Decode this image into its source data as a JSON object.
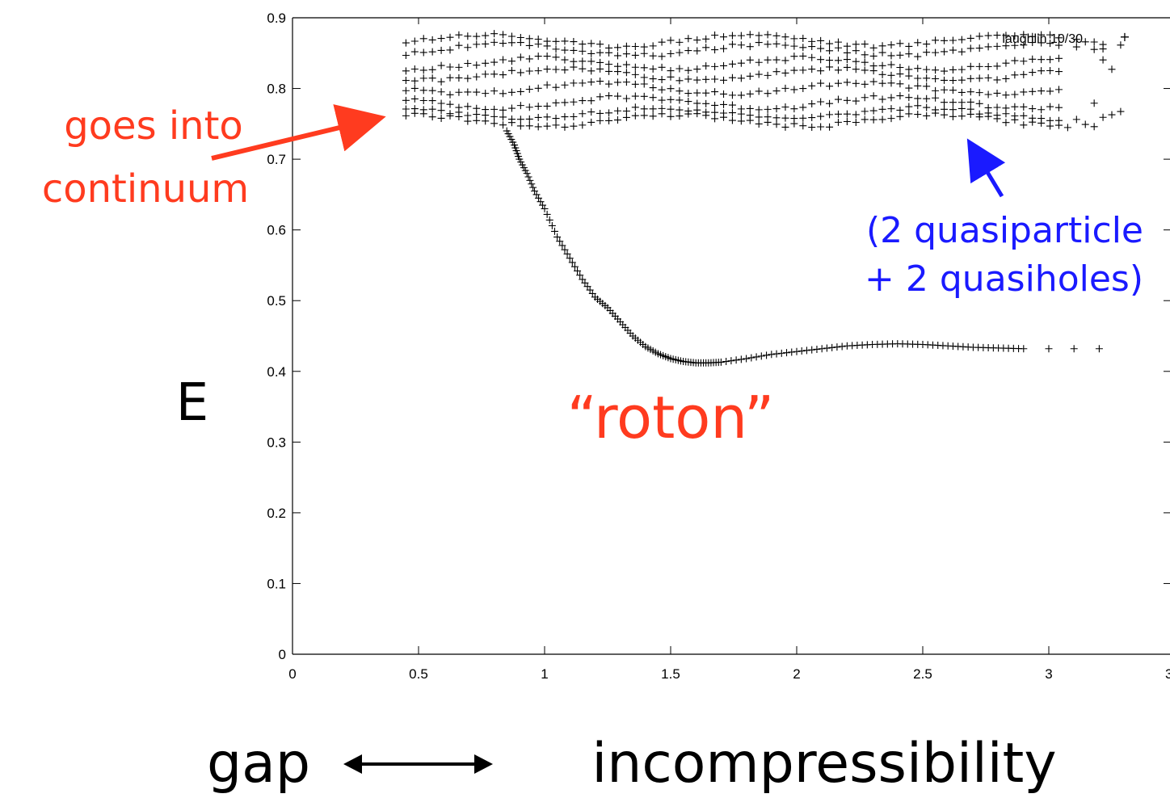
{
  "chart_data": {
    "type": "scatter",
    "xlim": [
      0,
      3.5
    ],
    "ylim": [
      0,
      0.9
    ],
    "x_ticks": [
      "0",
      "0.5",
      "1",
      "1.5",
      "2",
      "2.5",
      "3",
      "3"
    ],
    "y_ticks": [
      "0",
      "0.1",
      "0.2",
      "0.3",
      "0.4",
      "0.5",
      "0.6",
      "0.7",
      "0.8",
      "0.9"
    ],
    "ylabel": "E",
    "legend": {
      "label": "laughlin 10/30",
      "position": "top-right"
    },
    "grid": false,
    "series": [
      {
        "role": "roton branch",
        "x": [
          0.85,
          0.88,
          0.9,
          0.93,
          0.96,
          1.0,
          1.05,
          1.1,
          1.15,
          1.2,
          1.25,
          1.3,
          1.35,
          1.4,
          1.45,
          1.5,
          1.55,
          1.6,
          1.65,
          1.7,
          1.8,
          1.9,
          2.0,
          2.1,
          2.2,
          2.3,
          2.4,
          2.5,
          2.6,
          2.7,
          2.8,
          2.9,
          3.0,
          3.1,
          3.2,
          3.3
        ],
        "y": [
          0.74,
          0.72,
          0.7,
          0.68,
          0.655,
          0.63,
          0.59,
          0.56,
          0.53,
          0.505,
          0.49,
          0.47,
          0.45,
          0.435,
          0.425,
          0.418,
          0.414,
          0.412,
          0.412,
          0.413,
          0.418,
          0.424,
          0.428,
          0.432,
          0.436,
          0.438,
          0.439,
          0.438,
          0.436,
          0.434,
          0.433,
          0.432,
          0.432,
          0.432,
          0.432,
          0.432
        ]
      },
      {
        "role": "continuum band",
        "x_range": [
          0.45,
          3.3
        ],
        "y": 0.755
      },
      {
        "role": "continuum band",
        "x_range": [
          0.45,
          3.3
        ],
        "y": 0.765
      },
      {
        "role": "continuum band",
        "x_range": [
          0.45,
          3.3
        ],
        "y": 0.78
      },
      {
        "role": "continuum band",
        "x_range": [
          0.45,
          3.3
        ],
        "y": 0.8
      },
      {
        "role": "continuum band",
        "x_range": [
          0.45,
          3.3
        ],
        "y": 0.82
      },
      {
        "role": "continuum band",
        "x_range": [
          0.45,
          3.3
        ],
        "y": 0.835
      },
      {
        "role": "continuum band",
        "x_range": [
          0.45,
          3.3
        ],
        "y": 0.855
      },
      {
        "role": "continuum band",
        "x_range": [
          0.45,
          3.3
        ],
        "y": 0.868
      }
    ]
  },
  "annotations": {
    "goes_into_line1": "goes into",
    "goes_into_line2": "continuum",
    "roton": "“roton”",
    "quasi_line1": "(2 quasiparticle",
    "quasi_line2": "+ 2 quasiholes)",
    "bottom_left": "gap",
    "bottom_right": "incompressibility",
    "red": "#ff3b1f",
    "blue": "#1a1aff"
  }
}
